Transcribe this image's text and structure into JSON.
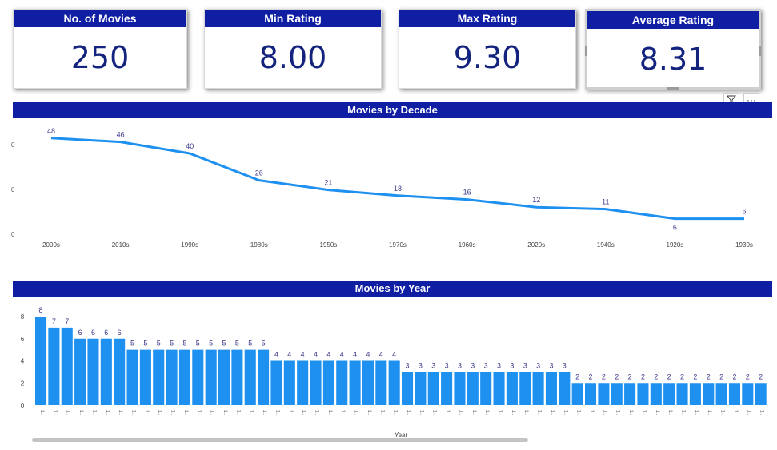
{
  "kpis": [
    {
      "label": "No. of Movies",
      "value": "250"
    },
    {
      "label": "Min Rating",
      "value": "8.00"
    },
    {
      "label": "Max Rating",
      "value": "9.30"
    },
    {
      "label": "Average Rating",
      "value": "8.31"
    }
  ],
  "visual_toolbar": {
    "filter_icon": "filter-icon",
    "more_label": "···"
  },
  "chart_data": [
    {
      "type": "line",
      "title": "Movies by Decade",
      "categories": [
        "2000s",
        "2010s",
        "1990s",
        "1980s",
        "1950s",
        "1970s",
        "1960s",
        "2020s",
        "1940s",
        "1920s",
        "1930s"
      ],
      "values": [
        48,
        46,
        40,
        26,
        21,
        18,
        16,
        12,
        11,
        6,
        6
      ],
      "y_ticks": [
        "0",
        "0",
        "0"
      ],
      "ylim": [
        0,
        55
      ],
      "color": "#1e90f0"
    },
    {
      "type": "bar",
      "title": "Movies by Year",
      "xlabel": "Year",
      "values": [
        8,
        7,
        7,
        6,
        6,
        6,
        6,
        5,
        5,
        5,
        5,
        5,
        5,
        5,
        5,
        5,
        5,
        5,
        4,
        4,
        4,
        4,
        4,
        4,
        4,
        4,
        4,
        4,
        3,
        3,
        3,
        3,
        3,
        3,
        3,
        3,
        3,
        3,
        3,
        3,
        3,
        2,
        2,
        2,
        2,
        2,
        2,
        2,
        2,
        2,
        2,
        2,
        2,
        2,
        2,
        2
      ],
      "category_label": "1..",
      "y_ticks": [
        0,
        2,
        4,
        6,
        8
      ],
      "ylim": [
        0,
        8
      ],
      "color": "#1e90f0"
    }
  ]
}
